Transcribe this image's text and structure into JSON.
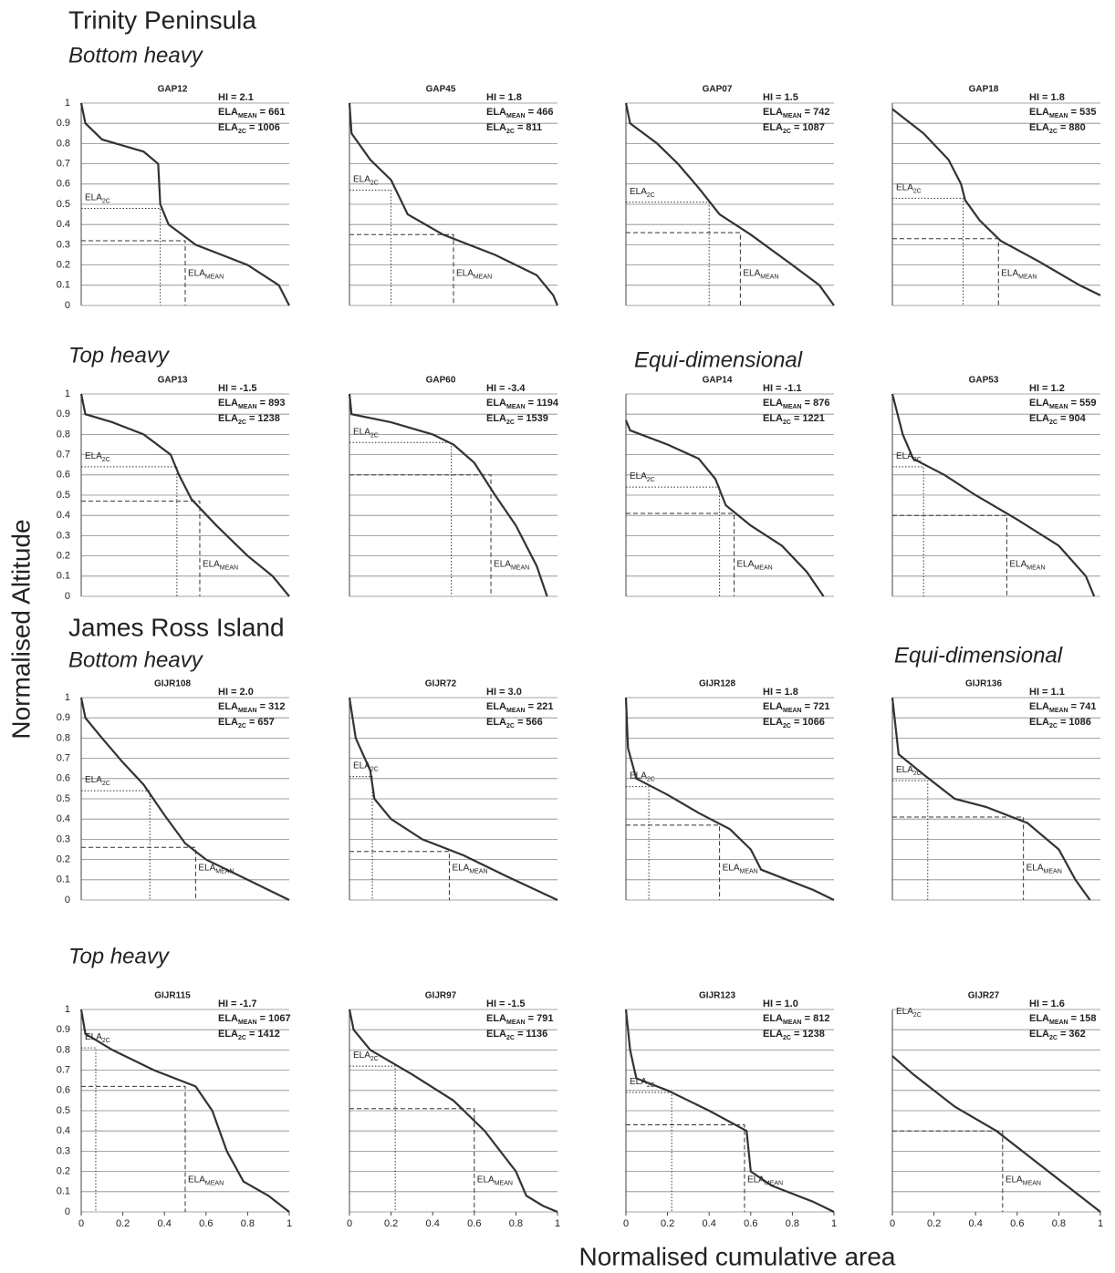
{
  "y_axis_label": "Normalised Altitude",
  "x_axis_label": "Normalised cumulative area",
  "ela_label": "ELA",
  "sub_mean": "MEAN",
  "sub_2c": "2C",
  "sections": [
    "Trinity Peninsula",
    "Bottom heavy",
    "Top heavy",
    "Equi-dimensional",
    "James Ross Island",
    "Bottom heavy",
    "Equi-dimensional",
    "Top heavy"
  ],
  "chart_data": [
    {
      "type": "line",
      "title": "GAP12",
      "hi_text": "HI = 2.1",
      "ela_mean_eq": "= 661",
      "ela_2c_eq": "= 1006",
      "x": [
        0,
        0.02,
        0.1,
        0.3,
        0.37,
        0.38,
        0.42,
        0.55,
        0.8,
        0.95,
        1
      ],
      "values": [
        1,
        0.9,
        0.82,
        0.76,
        0.7,
        0.5,
        0.4,
        0.3,
        0.2,
        0.1,
        0
      ],
      "ela_2c": {
        "x": 0.38,
        "y": 0.48
      },
      "ela_mean": {
        "x": 0.5,
        "y": 0.32
      },
      "xlim": [
        0,
        1
      ],
      "ylim": [
        0,
        1
      ],
      "yticks": [
        0,
        0.1,
        0.2,
        0.3,
        0.4,
        0.5,
        0.6,
        0.7,
        0.8,
        0.9,
        1
      ],
      "ytick_labels": true,
      "color": "#333333"
    },
    {
      "type": "line",
      "title": "GAP45",
      "hi_text": "HI = 1.8",
      "ela_mean_eq": "= 466",
      "ela_2c_eq": "= 811",
      "x": [
        0,
        0.01,
        0.1,
        0.2,
        0.28,
        0.45,
        0.7,
        0.9,
        0.98,
        1
      ],
      "values": [
        1,
        0.85,
        0.72,
        0.62,
        0.45,
        0.35,
        0.25,
        0.15,
        0.05,
        0
      ],
      "ela_2c": {
        "x": 0.2,
        "y": 0.57
      },
      "ela_mean": {
        "x": 0.5,
        "y": 0.35
      },
      "xlim": [
        0,
        1
      ],
      "ylim": [
        0,
        1
      ],
      "yticks": [
        0,
        0.1,
        0.2,
        0.3,
        0.4,
        0.5,
        0.6,
        0.7,
        0.8,
        0.9,
        1
      ],
      "ytick_labels": false,
      "color": "#333333"
    },
    {
      "type": "line",
      "title": "GAP07",
      "hi_text": "HI = 1.5",
      "ela_mean_eq": "= 742",
      "ela_2c_eq": "= 1087",
      "x": [
        0,
        0.02,
        0.15,
        0.25,
        0.35,
        0.45,
        0.6,
        0.8,
        0.93,
        1
      ],
      "values": [
        1,
        0.9,
        0.8,
        0.7,
        0.58,
        0.45,
        0.35,
        0.2,
        0.1,
        0
      ],
      "ela_2c": {
        "x": 0.4,
        "y": 0.51
      },
      "ela_mean": {
        "x": 0.55,
        "y": 0.36
      },
      "xlim": [
        0,
        1
      ],
      "ylim": [
        0,
        1
      ],
      "yticks": [
        0,
        0.1,
        0.2,
        0.3,
        0.4,
        0.5,
        0.6,
        0.7,
        0.8,
        0.9,
        1
      ],
      "ytick_labels": false,
      "color": "#333333"
    },
    {
      "type": "line",
      "title": "GAP18",
      "hi_text": "HI = 1.8",
      "ela_mean_eq": "= 535",
      "ela_2c_eq": "= 880",
      "x": [
        0,
        0.15,
        0.27,
        0.33,
        0.35,
        0.42,
        0.52,
        0.7,
        0.9,
        1
      ],
      "values": [
        0.97,
        0.85,
        0.72,
        0.6,
        0.52,
        0.42,
        0.32,
        0.22,
        0.1,
        0.05
      ],
      "ela_2c": {
        "x": 0.34,
        "y": 0.53
      },
      "ela_mean": {
        "x": 0.51,
        "y": 0.33
      },
      "xlim": [
        0,
        1
      ],
      "ylim": [
        0,
        1
      ],
      "yticks": [
        0,
        0.1,
        0.2,
        0.3,
        0.4,
        0.5,
        0.6,
        0.7,
        0.8,
        0.9,
        1
      ],
      "ytick_labels": false,
      "color": "#333333"
    },
    {
      "type": "line",
      "title": "GAP13",
      "hi_text": "HI = -1.5",
      "ela_mean_eq": "= 893",
      "ela_2c_eq": "= 1238",
      "x": [
        0,
        0.02,
        0.15,
        0.3,
        0.43,
        0.47,
        0.53,
        0.65,
        0.8,
        0.92,
        1
      ],
      "values": [
        1,
        0.9,
        0.86,
        0.8,
        0.7,
        0.6,
        0.48,
        0.35,
        0.2,
        0.1,
        0
      ],
      "ela_2c": {
        "x": 0.46,
        "y": 0.64
      },
      "ela_mean": {
        "x": 0.57,
        "y": 0.47
      },
      "xlim": [
        0,
        1
      ],
      "ylim": [
        0,
        1
      ],
      "yticks": [
        0,
        0.1,
        0.2,
        0.3,
        0.4,
        0.5,
        0.6,
        0.7,
        0.8,
        0.9,
        1
      ],
      "ytick_labels": true,
      "color": "#333333"
    },
    {
      "type": "line",
      "title": "GAP60",
      "hi_text": "HI = -3.4",
      "ela_mean_eq": "= 1194",
      "ela_2c_eq": "= 1539",
      "x": [
        0,
        0.01,
        0.2,
        0.4,
        0.5,
        0.6,
        0.7,
        0.8,
        0.9,
        0.95
      ],
      "values": [
        1,
        0.9,
        0.86,
        0.8,
        0.75,
        0.66,
        0.5,
        0.35,
        0.15,
        0
      ],
      "ela_2c": {
        "x": 0.49,
        "y": 0.76
      },
      "ela_mean": {
        "x": 0.68,
        "y": 0.6
      },
      "xlim": [
        0,
        1
      ],
      "ylim": [
        0,
        1
      ],
      "yticks": [
        0,
        0.1,
        0.2,
        0.3,
        0.4,
        0.5,
        0.6,
        0.7,
        0.8,
        0.9,
        1
      ],
      "ytick_labels": false,
      "color": "#333333"
    },
    {
      "type": "line",
      "title": "GAP14",
      "hi_text": "HI = -1.1",
      "ela_mean_eq": "= 876",
      "ela_2c_eq": "= 1221",
      "x": [
        0,
        0.02,
        0.2,
        0.35,
        0.43,
        0.48,
        0.6,
        0.75,
        0.87,
        0.95
      ],
      "values": [
        0.87,
        0.82,
        0.75,
        0.68,
        0.58,
        0.45,
        0.35,
        0.25,
        0.12,
        0
      ],
      "ela_2c": {
        "x": 0.45,
        "y": 0.54
      },
      "ela_mean": {
        "x": 0.52,
        "y": 0.41
      },
      "xlim": [
        0,
        1
      ],
      "ylim": [
        0,
        1
      ],
      "yticks": [
        0,
        0.1,
        0.2,
        0.3,
        0.4,
        0.5,
        0.6,
        0.7,
        0.8,
        0.9,
        1
      ],
      "ytick_labels": false,
      "color": "#333333"
    },
    {
      "type": "line",
      "title": "GAP53",
      "hi_text": "HI = 1.2",
      "ela_mean_eq": "= 559",
      "ela_2c_eq": "= 904",
      "x": [
        0,
        0.05,
        0.1,
        0.25,
        0.4,
        0.6,
        0.8,
        0.93,
        0.97
      ],
      "values": [
        1,
        0.8,
        0.68,
        0.6,
        0.5,
        0.38,
        0.25,
        0.1,
        0
      ],
      "ela_2c": {
        "x": 0.15,
        "y": 0.64
      },
      "ela_mean": {
        "x": 0.55,
        "y": 0.4
      },
      "xlim": [
        0,
        1
      ],
      "ylim": [
        0,
        1
      ],
      "yticks": [
        0,
        0.1,
        0.2,
        0.3,
        0.4,
        0.5,
        0.6,
        0.7,
        0.8,
        0.9,
        1
      ],
      "ytick_labels": false,
      "color": "#333333"
    },
    {
      "type": "line",
      "title": "GIJR108",
      "hi_text": "HI = 2.0",
      "ela_mean_eq": "= 312",
      "ela_2c_eq": "= 657",
      "x": [
        0,
        0.02,
        0.1,
        0.2,
        0.3,
        0.4,
        0.5,
        0.6,
        0.8,
        1
      ],
      "values": [
        1,
        0.9,
        0.8,
        0.68,
        0.57,
        0.42,
        0.28,
        0.2,
        0.1,
        0
      ],
      "ela_2c": {
        "x": 0.33,
        "y": 0.54
      },
      "ela_mean": {
        "x": 0.55,
        "y": 0.26
      },
      "xlim": [
        0,
        1
      ],
      "ylim": [
        0,
        1
      ],
      "yticks": [
        0,
        0.1,
        0.2,
        0.3,
        0.4,
        0.5,
        0.6,
        0.7,
        0.8,
        0.9,
        1
      ],
      "ytick_labels": true,
      "color": "#333333"
    },
    {
      "type": "line",
      "title": "GIJR72",
      "hi_text": "HI = 3.0",
      "ela_mean_eq": "= 221",
      "ela_2c_eq": "= 566",
      "x": [
        0,
        0.03,
        0.1,
        0.12,
        0.2,
        0.35,
        0.55,
        0.75,
        1
      ],
      "values": [
        1,
        0.8,
        0.64,
        0.5,
        0.4,
        0.3,
        0.22,
        0.12,
        0
      ],
      "ela_2c": {
        "x": 0.11,
        "y": 0.61
      },
      "ela_mean": {
        "x": 0.48,
        "y": 0.24
      },
      "xlim": [
        0,
        1
      ],
      "ylim": [
        0,
        1
      ],
      "yticks": [
        0,
        0.1,
        0.2,
        0.3,
        0.4,
        0.5,
        0.6,
        0.7,
        0.8,
        0.9,
        1
      ],
      "ytick_labels": false,
      "color": "#333333"
    },
    {
      "type": "line",
      "title": "GIJR128",
      "hi_text": "HI = 1.8",
      "ela_mean_eq": "= 721",
      "ela_2c_eq": "= 1066",
      "x": [
        0,
        0.01,
        0.05,
        0.2,
        0.35,
        0.5,
        0.6,
        0.65,
        0.9,
        1
      ],
      "values": [
        1,
        0.75,
        0.6,
        0.52,
        0.43,
        0.35,
        0.25,
        0.15,
        0.05,
        0
      ],
      "ela_2c": {
        "x": 0.11,
        "y": 0.56
      },
      "ela_mean": {
        "x": 0.45,
        "y": 0.37
      },
      "xlim": [
        0,
        1
      ],
      "ylim": [
        0,
        1
      ],
      "yticks": [
        0,
        0.1,
        0.2,
        0.3,
        0.4,
        0.5,
        0.6,
        0.7,
        0.8,
        0.9,
        1
      ],
      "ytick_labels": false,
      "color": "#333333"
    },
    {
      "type": "line",
      "title": "GIJR136",
      "hi_text": "HI = 1.1",
      "ela_mean_eq": "= 741",
      "ela_2c_eq": "= 1086",
      "x": [
        0,
        0.03,
        0.15,
        0.3,
        0.45,
        0.65,
        0.8,
        0.88,
        0.95
      ],
      "values": [
        1,
        0.72,
        0.62,
        0.5,
        0.46,
        0.38,
        0.25,
        0.1,
        0
      ],
      "ela_2c": {
        "x": 0.17,
        "y": 0.59
      },
      "ela_mean": {
        "x": 0.63,
        "y": 0.41
      },
      "xlim": [
        0,
        1
      ],
      "ylim": [
        0,
        1
      ],
      "yticks": [
        0,
        0.1,
        0.2,
        0.3,
        0.4,
        0.5,
        0.6,
        0.7,
        0.8,
        0.9,
        1
      ],
      "ytick_labels": false,
      "color": "#333333"
    },
    {
      "type": "line",
      "title": "GIJR115",
      "hi_text": "HI = -1.7",
      "ela_mean_eq": "= 1067",
      "ela_2c_eq": "= 1412",
      "x": [
        0,
        0.02,
        0.15,
        0.35,
        0.55,
        0.63,
        0.7,
        0.78,
        0.9,
        1
      ],
      "values": [
        1,
        0.88,
        0.8,
        0.7,
        0.62,
        0.5,
        0.3,
        0.15,
        0.08,
        0
      ],
      "ela_2c": {
        "x": 0.07,
        "y": 0.81
      },
      "ela_mean": {
        "x": 0.5,
        "y": 0.62
      },
      "xlim": [
        0,
        1
      ],
      "ylim": [
        0,
        1
      ],
      "yticks": [
        0,
        0.1,
        0.2,
        0.3,
        0.4,
        0.5,
        0.6,
        0.7,
        0.8,
        0.9,
        1
      ],
      "ytick_labels": true,
      "xticks": [
        0,
        0.2,
        0.4,
        0.6,
        0.8,
        1
      ],
      "color": "#333333"
    },
    {
      "type": "line",
      "title": "GIJR97",
      "hi_text": "HI = -1.5",
      "ela_mean_eq": "= 791",
      "ela_2c_eq": "= 1136",
      "x": [
        0,
        0.02,
        0.1,
        0.3,
        0.5,
        0.65,
        0.8,
        0.85,
        0.93,
        1
      ],
      "values": [
        1,
        0.9,
        0.8,
        0.68,
        0.55,
        0.4,
        0.2,
        0.08,
        0.03,
        0
      ],
      "ela_2c": {
        "x": 0.22,
        "y": 0.72
      },
      "ela_mean": {
        "x": 0.6,
        "y": 0.51
      },
      "xlim": [
        0,
        1
      ],
      "ylim": [
        0,
        1
      ],
      "yticks": [
        0,
        0.1,
        0.2,
        0.3,
        0.4,
        0.5,
        0.6,
        0.7,
        0.8,
        0.9,
        1
      ],
      "ytick_labels": false,
      "xticks": [
        0,
        0.2,
        0.4,
        0.6,
        0.8,
        1
      ],
      "color": "#333333"
    },
    {
      "type": "line",
      "title": "GIJR123",
      "hi_text": "HI = 1.0",
      "ela_mean_eq": "= 812",
      "ela_2c_eq": "= 1238",
      "x": [
        0,
        0.02,
        0.05,
        0.2,
        0.4,
        0.58,
        0.6,
        0.7,
        0.9,
        1
      ],
      "values": [
        1,
        0.8,
        0.66,
        0.6,
        0.5,
        0.4,
        0.2,
        0.13,
        0.05,
        0
      ],
      "ela_2c": {
        "x": 0.22,
        "y": 0.59
      },
      "ela_mean": {
        "x": 0.57,
        "y": 0.43
      },
      "xlim": [
        0,
        1
      ],
      "ylim": [
        0,
        1
      ],
      "yticks": [
        0,
        0.1,
        0.2,
        0.3,
        0.4,
        0.5,
        0.6,
        0.7,
        0.8,
        0.9,
        1
      ],
      "ytick_labels": false,
      "xticks": [
        0,
        0.2,
        0.4,
        0.6,
        0.8,
        1
      ],
      "color": "#333333"
    },
    {
      "type": "line",
      "title": "GIJR27",
      "hi_text": "HI = 1.6",
      "ela_mean_eq": "= 158",
      "ela_2c_eq": "= 362",
      "x": [
        0,
        0.1,
        0.3,
        0.5,
        0.7,
        0.85,
        1
      ],
      "values": [
        0.77,
        0.68,
        0.52,
        0.4,
        0.24,
        0.12,
        0
      ],
      "ela_2c": null,
      "ela_mean": {
        "x": 0.53,
        "y": 0.4
      },
      "xlim": [
        0,
        1
      ],
      "ylim": [
        0,
        1
      ],
      "yticks": [
        0,
        0.1,
        0.2,
        0.3,
        0.4,
        0.5,
        0.6,
        0.7,
        0.8,
        0.9,
        1
      ],
      "ytick_labels": false,
      "xticks": [
        0,
        0.2,
        0.4,
        0.6,
        0.8,
        1
      ],
      "color": "#333333"
    }
  ]
}
